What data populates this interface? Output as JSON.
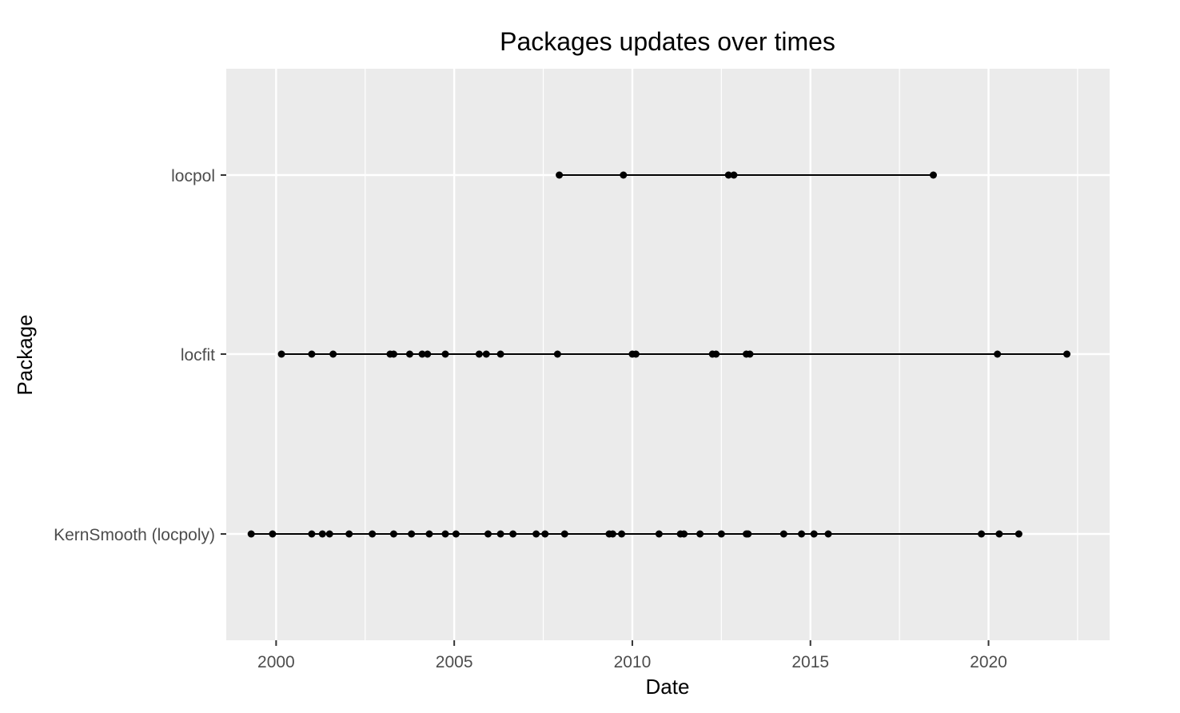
{
  "chart_data": {
    "type": "scatter",
    "title": "Packages updates over times",
    "xlabel": "Date",
    "ylabel": "Package",
    "xlim": [
      1998.6,
      2023.4
    ],
    "x_ticks": [
      2000,
      2005,
      2010,
      2015,
      2020
    ],
    "x_tick_labels": [
      "2000",
      "2005",
      "2010",
      "2015",
      "2020"
    ],
    "categories": [
      "KernSmooth (locpoly)",
      "locfit",
      "locpol"
    ],
    "grid": true,
    "legend": "none",
    "colors": {
      "panel_background": "#ebebeb",
      "grid_line": "#ffffff",
      "point": "#000000",
      "line": "#000000",
      "tick_label": "#4d4d4d"
    },
    "series": [
      {
        "category": "KernSmooth (locpoly)",
        "x": [
          1999.3,
          1999.9,
          2001.0,
          2001.3,
          2001.5,
          2002.05,
          2002.7,
          2003.3,
          2003.8,
          2004.3,
          2004.75,
          2005.05,
          2005.95,
          2006.3,
          2006.65,
          2007.3,
          2007.55,
          2008.1,
          2009.35,
          2009.45,
          2009.7,
          2010.75,
          2011.35,
          2011.45,
          2011.9,
          2012.5,
          2013.2,
          2013.25,
          2014.25,
          2014.75,
          2015.1,
          2015.5,
          2019.8,
          2020.3,
          2020.85
        ]
      },
      {
        "category": "locfit",
        "x": [
          2000.15,
          2001.0,
          2001.6,
          2003.2,
          2003.3,
          2003.75,
          2004.1,
          2004.25,
          2004.75,
          2005.7,
          2005.9,
          2006.3,
          2007.9,
          2010.0,
          2010.1,
          2012.25,
          2012.35,
          2013.2,
          2013.3,
          2020.25,
          2022.2
        ]
      },
      {
        "category": "locpol",
        "x": [
          2007.95,
          2009.75,
          2012.7,
          2012.85,
          2018.45
        ]
      }
    ]
  }
}
